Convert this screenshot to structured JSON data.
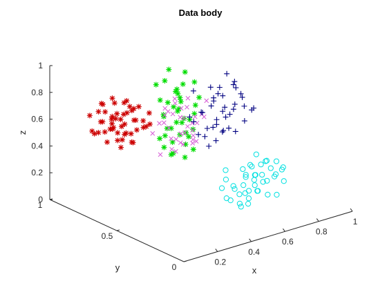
{
  "chart_data": {
    "type": "scatter3d",
    "title": "Data body",
    "xlabel": "x",
    "ylabel": "y",
    "zlabel": "z",
    "xlim": [
      0,
      1
    ],
    "ylim": [
      0,
      1
    ],
    "zlim": [
      0,
      1
    ],
    "xticks": [
      "0.2",
      "0.4",
      "0.6",
      "0.8",
      "1"
    ],
    "xtick_values": [
      0.2,
      0.4,
      0.6,
      0.8,
      1.0
    ],
    "yticks": [
      "0",
      "0.5",
      "1"
    ],
    "ytick_values": [
      0,
      0.5,
      1
    ],
    "zticks": [
      "0",
      "0.2",
      "0.4",
      "0.6",
      "0.8",
      "1"
    ],
    "ztick_values": [
      0,
      0.2,
      0.4,
      0.6,
      0.8,
      1.0
    ],
    "grid": false,
    "series": [
      {
        "marker": "asterisk",
        "color": "#cc0000",
        "points": [
          [
            0.05,
            0.7,
            0.62
          ],
          [
            0.08,
            0.72,
            0.68
          ],
          [
            0.1,
            0.66,
            0.74
          ],
          [
            0.12,
            0.74,
            0.58
          ],
          [
            0.14,
            0.64,
            0.66
          ],
          [
            0.16,
            0.7,
            0.72
          ],
          [
            0.18,
            0.62,
            0.6
          ],
          [
            0.2,
            0.76,
            0.64
          ],
          [
            0.22,
            0.68,
            0.76
          ],
          [
            0.06,
            0.6,
            0.7
          ],
          [
            0.09,
            0.78,
            0.56
          ],
          [
            0.11,
            0.58,
            0.64
          ],
          [
            0.13,
            0.8,
            0.7
          ],
          [
            0.15,
            0.56,
            0.74
          ],
          [
            0.17,
            0.82,
            0.6
          ],
          [
            0.19,
            0.54,
            0.68
          ],
          [
            0.21,
            0.6,
            0.8
          ],
          [
            0.23,
            0.72,
            0.54
          ],
          [
            0.07,
            0.66,
            0.56
          ],
          [
            0.1,
            0.74,
            0.8
          ],
          [
            0.12,
            0.62,
            0.52
          ],
          [
            0.14,
            0.78,
            0.76
          ],
          [
            0.16,
            0.58,
            0.56
          ],
          [
            0.18,
            0.76,
            0.8
          ],
          [
            0.2,
            0.64,
            0.52
          ],
          [
            0.24,
            0.66,
            0.66
          ],
          [
            0.26,
            0.7,
            0.72
          ],
          [
            0.08,
            0.56,
            0.62
          ],
          [
            0.11,
            0.84,
            0.66
          ],
          [
            0.15,
            0.72,
            0.6
          ],
          [
            0.19,
            0.68,
            0.64
          ],
          [
            0.22,
            0.58,
            0.7
          ],
          [
            0.25,
            0.76,
            0.74
          ],
          [
            0.13,
            0.68,
            0.82
          ],
          [
            0.17,
            0.64,
            0.84
          ],
          [
            0.09,
            0.7,
            0.76
          ],
          [
            0.27,
            0.62,
            0.62
          ],
          [
            0.28,
            0.74,
            0.68
          ],
          [
            0.06,
            0.76,
            0.6
          ],
          [
            0.21,
            0.8,
            0.58
          ],
          [
            0.24,
            0.56,
            0.76
          ],
          [
            0.14,
            0.6,
            0.78
          ],
          [
            0.18,
            0.72,
            0.56
          ],
          [
            0.12,
            0.7,
            0.62
          ],
          [
            0.16,
            0.74,
            0.66
          ],
          [
            0.2,
            0.7,
            0.7
          ],
          [
            0.1,
            0.62,
            0.58
          ],
          [
            0.23,
            0.64,
            0.6
          ],
          [
            0.26,
            0.58,
            0.66
          ],
          [
            0.15,
            0.66,
            0.7
          ]
        ]
      },
      {
        "marker": "asterisk",
        "color": "#00dd00",
        "points": [
          [
            0.38,
            0.62,
            0.92
          ],
          [
            0.42,
            0.58,
            0.86
          ],
          [
            0.46,
            0.64,
            0.8
          ],
          [
            0.4,
            0.54,
            0.74
          ],
          [
            0.44,
            0.6,
            0.68
          ],
          [
            0.48,
            0.56,
            0.62
          ],
          [
            0.36,
            0.66,
            0.88
          ],
          [
            0.5,
            0.62,
            0.94
          ],
          [
            0.34,
            0.58,
            0.7
          ],
          [
            0.52,
            0.54,
            0.78
          ],
          [
            0.39,
            0.52,
            0.56
          ],
          [
            0.45,
            0.66,
            0.52
          ],
          [
            0.41,
            0.6,
            0.46
          ],
          [
            0.47,
            0.52,
            0.42
          ],
          [
            0.37,
            0.56,
            0.4
          ],
          [
            0.43,
            0.62,
            0.36
          ],
          [
            0.49,
            0.58,
            0.48
          ],
          [
            0.35,
            0.62,
            0.5
          ],
          [
            0.51,
            0.64,
            0.58
          ],
          [
            0.33,
            0.54,
            0.62
          ],
          [
            0.4,
            0.68,
            0.74
          ],
          [
            0.46,
            0.5,
            0.7
          ],
          [
            0.42,
            0.64,
            0.98
          ],
          [
            0.54,
            0.6,
            0.86
          ],
          [
            0.38,
            0.5,
            0.82
          ],
          [
            0.44,
            0.56,
            0.9
          ],
          [
            0.48,
            0.68,
            0.66
          ],
          [
            0.36,
            0.6,
            0.44
          ],
          [
            0.5,
            0.56,
            0.54
          ],
          [
            0.42,
            0.52,
            0.38
          ],
          [
            0.45,
            0.58,
            0.6
          ],
          [
            0.39,
            0.64,
            0.64
          ],
          [
            0.47,
            0.62,
            0.76
          ],
          [
            0.41,
            0.56,
            0.84
          ],
          [
            0.43,
            0.66,
            0.72
          ],
          [
            0.37,
            0.52,
            0.66
          ],
          [
            0.49,
            0.6,
            0.5
          ],
          [
            0.35,
            0.58,
            0.54
          ],
          [
            0.53,
            0.58,
            0.7
          ],
          [
            0.44,
            0.54,
            0.46
          ]
        ]
      },
      {
        "marker": "x",
        "color": "#d65cd6",
        "points": [
          [
            0.32,
            0.52,
            0.76
          ],
          [
            0.36,
            0.48,
            0.72
          ],
          [
            0.4,
            0.44,
            0.68
          ],
          [
            0.34,
            0.54,
            0.62
          ],
          [
            0.38,
            0.5,
            0.58
          ],
          [
            0.42,
            0.46,
            0.54
          ],
          [
            0.3,
            0.56,
            0.66
          ],
          [
            0.44,
            0.42,
            0.74
          ],
          [
            0.28,
            0.5,
            0.7
          ],
          [
            0.46,
            0.48,
            0.64
          ],
          [
            0.33,
            0.44,
            0.56
          ],
          [
            0.37,
            0.56,
            0.52
          ],
          [
            0.41,
            0.52,
            0.48
          ],
          [
            0.35,
            0.46,
            0.8
          ],
          [
            0.39,
            0.42,
            0.6
          ],
          [
            0.43,
            0.54,
            0.66
          ],
          [
            0.31,
            0.48,
            0.5
          ],
          [
            0.45,
            0.5,
            0.58
          ],
          [
            0.29,
            0.54,
            0.44
          ],
          [
            0.47,
            0.44,
            0.7
          ],
          [
            0.36,
            0.52,
            0.84
          ],
          [
            0.4,
            0.48,
            0.78
          ],
          [
            0.34,
            0.42,
            0.64
          ],
          [
            0.38,
            0.56,
            0.7
          ],
          [
            0.42,
            0.5,
            0.62
          ],
          [
            0.32,
            0.46,
            0.58
          ],
          [
            0.44,
            0.46,
            0.52
          ],
          [
            0.3,
            0.52,
            0.74
          ],
          [
            0.48,
            0.52,
            0.66
          ],
          [
            0.26,
            0.56,
            0.6
          ],
          [
            0.5,
            0.46,
            0.8
          ],
          [
            0.37,
            0.4,
            0.56
          ],
          [
            0.41,
            0.58,
            0.76
          ],
          [
            0.35,
            0.5,
            0.46
          ],
          [
            0.27,
            0.48,
            0.82
          ],
          [
            0.39,
            0.46,
            0.86
          ]
        ]
      },
      {
        "marker": "plus",
        "color": "#000080",
        "points": [
          [
            0.62,
            0.58,
            0.8
          ],
          [
            0.66,
            0.54,
            0.74
          ],
          [
            0.7,
            0.5,
            0.68
          ],
          [
            0.58,
            0.6,
            0.62
          ],
          [
            0.64,
            0.56,
            0.56
          ],
          [
            0.68,
            0.52,
            0.5
          ],
          [
            0.56,
            0.5,
            0.72
          ],
          [
            0.72,
            0.48,
            0.76
          ],
          [
            0.54,
            0.54,
            0.66
          ],
          [
            0.74,
            0.56,
            0.6
          ],
          [
            0.6,
            0.46,
            0.54
          ],
          [
            0.76,
            0.52,
            0.7
          ],
          [
            0.52,
            0.58,
            0.58
          ],
          [
            0.78,
            0.46,
            0.64
          ],
          [
            0.5,
            0.52,
            0.52
          ],
          [
            0.65,
            0.6,
            0.48
          ],
          [
            0.61,
            0.5,
            0.84
          ],
          [
            0.69,
            0.58,
            0.44
          ],
          [
            0.57,
            0.56,
            0.46
          ],
          [
            0.73,
            0.54,
            0.82
          ],
          [
            0.63,
            0.48,
            0.62
          ],
          [
            0.67,
            0.62,
            0.66
          ],
          [
            0.59,
            0.52,
            0.76
          ],
          [
            0.71,
            0.44,
            0.58
          ],
          [
            0.55,
            0.62,
            0.78
          ],
          [
            0.75,
            0.6,
            0.54
          ],
          [
            0.53,
            0.48,
            0.44
          ],
          [
            0.77,
            0.58,
            0.74
          ],
          [
            0.66,
            0.46,
            0.86
          ],
          [
            0.62,
            0.54,
            0.42
          ],
          [
            0.7,
            0.56,
            0.88
          ],
          [
            0.58,
            0.44,
            0.7
          ],
          [
            0.8,
            0.5,
            0.6
          ],
          [
            0.48,
            0.56,
            0.64
          ],
          [
            0.64,
            0.5,
            0.68
          ],
          [
            0.68,
            0.6,
            0.72
          ],
          [
            0.6,
            0.58,
            0.5
          ],
          [
            0.72,
            0.52,
            0.46
          ],
          [
            0.56,
            0.46,
            0.6
          ],
          [
            0.74,
            0.48,
            0.66
          ]
        ]
      },
      {
        "marker": "circle",
        "color": "#00e0e0",
        "points": [
          [
            0.62,
            0.34,
            0.3
          ],
          [
            0.66,
            0.3,
            0.26
          ],
          [
            0.7,
            0.26,
            0.22
          ],
          [
            0.58,
            0.36,
            0.18
          ],
          [
            0.64,
            0.32,
            0.14
          ],
          [
            0.68,
            0.28,
            0.34
          ],
          [
            0.56,
            0.26,
            0.24
          ],
          [
            0.72,
            0.22,
            0.28
          ],
          [
            0.54,
            0.3,
            0.2
          ],
          [
            0.74,
            0.34,
            0.16
          ],
          [
            0.6,
            0.22,
            0.32
          ],
          [
            0.76,
            0.28,
            0.22
          ],
          [
            0.52,
            0.34,
            0.26
          ],
          [
            0.78,
            0.24,
            0.3
          ],
          [
            0.5,
            0.28,
            0.14
          ],
          [
            0.65,
            0.36,
            0.1
          ],
          [
            0.61,
            0.26,
            0.36
          ],
          [
            0.69,
            0.32,
            0.12
          ],
          [
            0.57,
            0.3,
            0.08
          ],
          [
            0.73,
            0.3,
            0.34
          ],
          [
            0.63,
            0.24,
            0.18
          ],
          [
            0.67,
            0.38,
            0.22
          ],
          [
            0.59,
            0.28,
            0.28
          ],
          [
            0.71,
            0.2,
            0.14
          ],
          [
            0.55,
            0.38,
            0.3
          ],
          [
            0.75,
            0.36,
            0.2
          ],
          [
            0.53,
            0.24,
            0.1
          ],
          [
            0.77,
            0.32,
            0.26
          ],
          [
            0.66,
            0.22,
            0.4
          ],
          [
            0.62,
            0.3,
            0.06
          ],
          [
            0.7,
            0.34,
            0.38
          ],
          [
            0.58,
            0.2,
            0.26
          ],
          [
            0.8,
            0.26,
            0.18
          ],
          [
            0.48,
            0.32,
            0.22
          ],
          [
            0.64,
            0.28,
            0.24
          ],
          [
            0.68,
            0.36,
            0.3
          ],
          [
            0.6,
            0.34,
            0.12
          ],
          [
            0.72,
            0.28,
            0.1
          ],
          [
            0.56,
            0.22,
            0.16
          ],
          [
            0.74,
            0.24,
            0.36
          ],
          [
            0.82,
            0.3,
            0.24
          ],
          [
            0.46,
            0.26,
            0.18
          ]
        ]
      }
    ]
  }
}
